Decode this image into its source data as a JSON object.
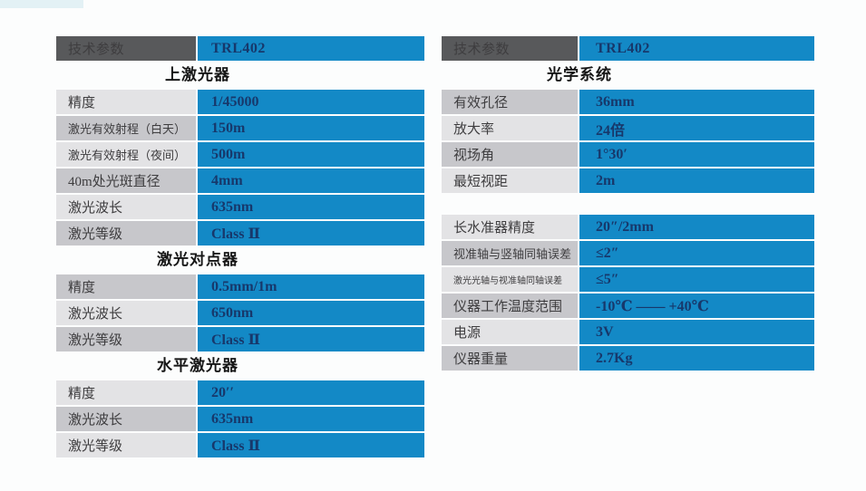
{
  "colors": {
    "accent_blue": "#1389c6",
    "header_dark": "#58595b",
    "row_label_light": "#e3e3e5",
    "row_label_dark": "#c7c7cb",
    "value_text": "#17386b"
  },
  "left_table": {
    "header": {
      "param_label": "技术参数",
      "model": "TRL402"
    },
    "sections": [
      {
        "title": "上激光器",
        "rows": [
          [
            "精度",
            "1/45000"
          ],
          [
            "激光有效射程（白天）",
            "150m"
          ],
          [
            "激光有效射程（夜间）",
            "500m"
          ],
          [
            "40m处光斑直径",
            "4mm"
          ],
          [
            "激光波长",
            "635nm"
          ],
          [
            "激光等级",
            "Class Ⅱ"
          ]
        ]
      },
      {
        "title": "激光对点器",
        "rows": [
          [
            "精度",
            "0.5mm/1m"
          ],
          [
            "激光波长",
            "650nm"
          ],
          [
            "激光等级",
            "Class Ⅱ"
          ]
        ]
      },
      {
        "title": "水平激光器",
        "rows": [
          [
            "精度",
            "20′′"
          ],
          [
            "激光波长",
            "635nm"
          ],
          [
            "激光等级",
            "Class Ⅱ"
          ]
        ]
      }
    ]
  },
  "right_table": {
    "header": {
      "param_label": "技术参数",
      "model": "TRL402"
    },
    "sections": [
      {
        "title": "光学系统",
        "rows": [
          [
            "有效孔径",
            "36mm"
          ],
          [
            "放大率",
            "24倍"
          ],
          [
            "视场角",
            "1°30′"
          ],
          [
            "最短视距",
            "2m"
          ]
        ]
      },
      {
        "title": "",
        "rows": [
          [
            "长水准器精度",
            "20″/2mm"
          ],
          [
            "视准轴与竖轴同轴误差",
            "≤2″"
          ],
          [
            "激光光轴与视准轴同轴误差",
            "≤5″"
          ],
          [
            "仪器工作温度范围",
            "-10℃ —— +40℃"
          ],
          [
            "电源",
            "3V"
          ],
          [
            "仪器重量",
            "2.7Kg"
          ]
        ]
      }
    ]
  }
}
